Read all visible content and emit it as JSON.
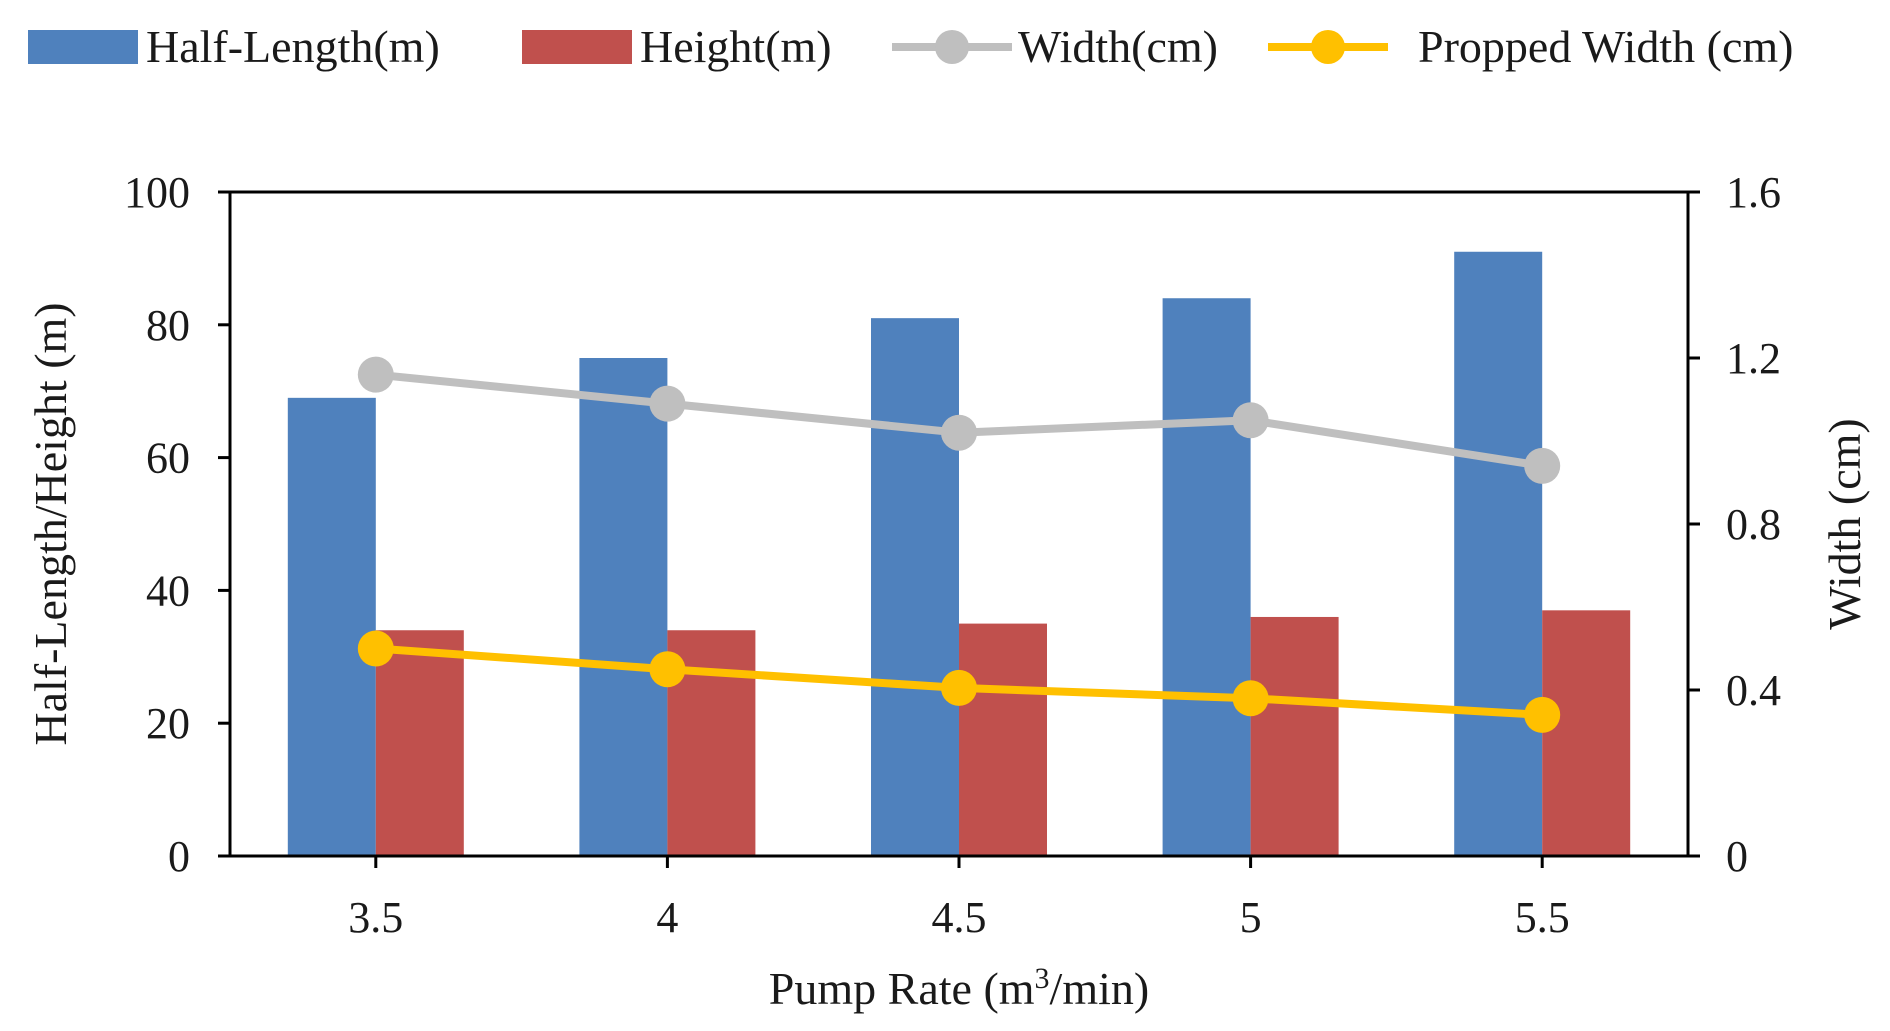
{
  "chart_data": {
    "type": "bar",
    "categories": [
      "3.5",
      "4",
      "4.5",
      "5",
      "5.5"
    ],
    "xlabel_prefix": "Pump Rate (m",
    "xlabel_sup": "3",
    "xlabel_suffix": "/min)",
    "ylabel": "Half-Length/Height  (m)",
    "y2label": "Width (cm)",
    "ylim": [
      0,
      100
    ],
    "y2lim": [
      0,
      1.6
    ],
    "yticks": [
      "0",
      "20",
      "40",
      "60",
      "80",
      "100"
    ],
    "y2ticks": [
      "0",
      "0.4",
      "0.8",
      "1.2",
      "1.6"
    ],
    "grid": false,
    "legend_position": "top",
    "series": [
      {
        "name": "Half-Length(m)",
        "kind": "bar",
        "axis": "left",
        "color": "#4f81bd",
        "values": [
          69,
          75,
          81,
          84,
          91
        ]
      },
      {
        "name": "Height(m)",
        "kind": "bar",
        "axis": "left",
        "color": "#c0504d",
        "values": [
          34,
          34,
          35,
          36,
          37
        ]
      },
      {
        "name": "Width(cm)",
        "kind": "line",
        "axis": "right",
        "color": "#bfbfbf",
        "values": [
          1.16,
          1.09,
          1.02,
          1.05,
          0.94
        ]
      },
      {
        "name": "Propped Width (cm)",
        "kind": "line",
        "axis": "right",
        "color": "#ffc000",
        "values": [
          0.5,
          0.45,
          0.405,
          0.38,
          0.34
        ]
      }
    ]
  }
}
